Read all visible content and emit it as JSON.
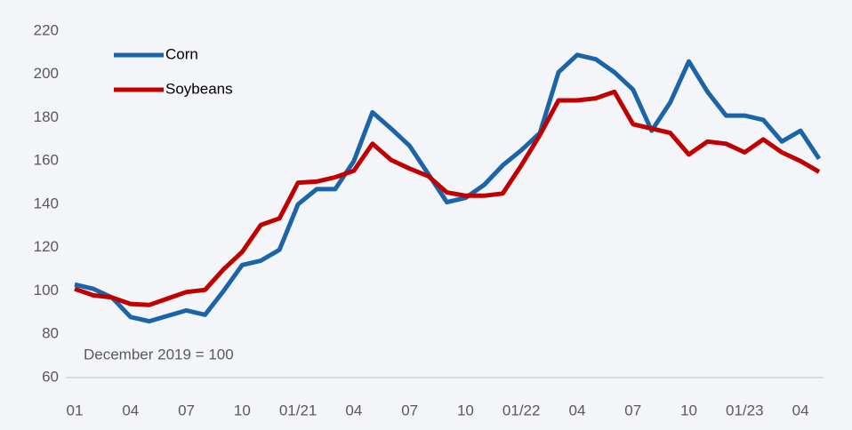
{
  "chart_data": {
    "type": "line",
    "annotation": "December 2019 = 100",
    "categories": [
      "01",
      null,
      null,
      "04",
      null,
      null,
      "07",
      null,
      null,
      "10",
      null,
      null,
      "01/21",
      null,
      null,
      "04",
      null,
      null,
      "07",
      null,
      null,
      "10",
      null,
      null,
      "01/22",
      null,
      null,
      "04",
      null,
      null,
      "07",
      null,
      null,
      "10",
      null,
      null,
      "01/23",
      null,
      null,
      "04",
      null
    ],
    "series": [
      {
        "name": "Corn",
        "color": "#1c64a8",
        "values": [
          103,
          101,
          97,
          88,
          86,
          88.5,
          91,
          89,
          100,
          112,
          114,
          119,
          140,
          147,
          147,
          160,
          182.5,
          175,
          167,
          154,
          141,
          143,
          149,
          158,
          165,
          173,
          201,
          209,
          207,
          201,
          193,
          174,
          187,
          206,
          192,
          181,
          181,
          179,
          169,
          174,
          161
        ]
      },
      {
        "name": "Soybeans",
        "color": "#c00000",
        "values": [
          101,
          98,
          97,
          94,
          93.5,
          96.5,
          99.5,
          100.5,
          110,
          118,
          130.5,
          133.5,
          150,
          150.5,
          152.5,
          155.5,
          168,
          160.5,
          156.5,
          153,
          145.5,
          144,
          144,
          145,
          158,
          172,
          188,
          188,
          189,
          192,
          177,
          175,
          173,
          163,
          169,
          168,
          164,
          170,
          164,
          160,
          155
        ]
      }
    ],
    "ylim": [
      60,
      220
    ],
    "yticks": [
      60,
      80,
      100,
      120,
      140,
      160,
      180,
      200,
      220
    ],
    "grid": false,
    "legend": "upper left"
  }
}
